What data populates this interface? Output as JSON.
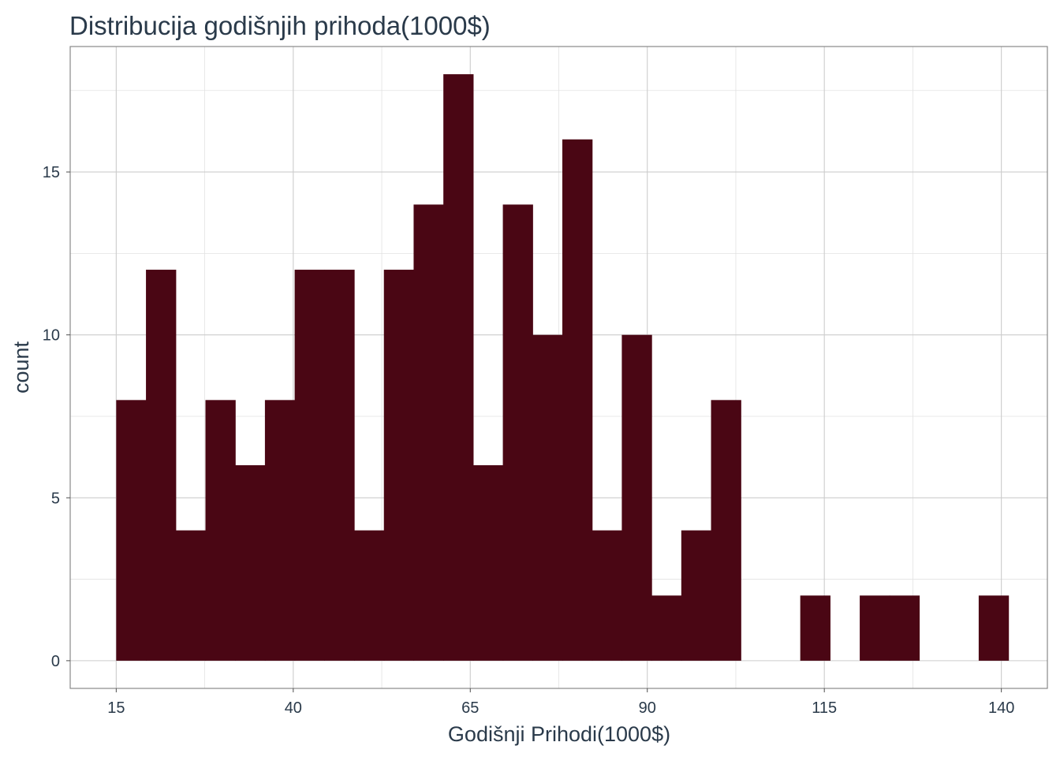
{
  "chart_data": {
    "type": "bar",
    "subtype": "histogram",
    "title": "Distribucija godišnjih prihoda(1000$)",
    "xlabel": "Godišnji Prihodi(1000$)",
    "ylabel": "count",
    "xlim": [
      8.5,
      146.5
    ],
    "ylim": [
      -0.85,
      18.85
    ],
    "x_ticks": [
      15,
      40,
      65,
      90,
      115,
      140
    ],
    "x_tick_labels": [
      "15",
      "40",
      "65",
      "90",
      "115",
      "140"
    ],
    "y_ticks": [
      0,
      5,
      10,
      15
    ],
    "y_tick_labels": [
      "0",
      "5",
      "10",
      "15"
    ],
    "y_minor_ticks": [
      2.5,
      7.5,
      12.5,
      17.5
    ],
    "grid": true,
    "bar_color": "#4a0614",
    "bins": [
      {
        "x0": 15.0,
        "x1": 19.2,
        "count": 8
      },
      {
        "x0": 19.2,
        "x1": 23.4,
        "count": 12
      },
      {
        "x0": 23.4,
        "x1": 27.6,
        "count": 4
      },
      {
        "x0": 27.6,
        "x1": 31.8,
        "count": 8
      },
      {
        "x0": 31.8,
        "x1": 36.0,
        "count": 6
      },
      {
        "x0": 36.0,
        "x1": 40.2,
        "count": 8
      },
      {
        "x0": 40.2,
        "x1": 44.4,
        "count": 12
      },
      {
        "x0": 44.4,
        "x1": 48.6,
        "count": 12
      },
      {
        "x0": 48.6,
        "x1": 52.8,
        "count": 4
      },
      {
        "x0": 52.8,
        "x1": 57.0,
        "count": 12
      },
      {
        "x0": 57.0,
        "x1": 61.2,
        "count": 14
      },
      {
        "x0": 61.2,
        "x1": 65.4,
        "count": 18
      },
      {
        "x0": 65.4,
        "x1": 69.6,
        "count": 6
      },
      {
        "x0": 69.6,
        "x1": 73.8,
        "count": 14
      },
      {
        "x0": 73.8,
        "x1": 78.0,
        "count": 10
      },
      {
        "x0": 78.0,
        "x1": 82.2,
        "count": 16
      },
      {
        "x0": 82.2,
        "x1": 86.4,
        "count": 4
      },
      {
        "x0": 86.4,
        "x1": 90.6,
        "count": 10
      },
      {
        "x0": 90.6,
        "x1": 94.8,
        "count": 2
      },
      {
        "x0": 94.8,
        "x1": 99.0,
        "count": 4
      },
      {
        "x0": 99.0,
        "x1": 103.2,
        "count": 8
      },
      {
        "x0": 103.2,
        "x1": 107.4,
        "count": 0
      },
      {
        "x0": 107.4,
        "x1": 111.6,
        "count": 0
      },
      {
        "x0": 111.6,
        "x1": 115.8,
        "count": 2
      },
      {
        "x0": 115.8,
        "x1": 120.0,
        "count": 0
      },
      {
        "x0": 120.0,
        "x1": 124.2,
        "count": 2
      },
      {
        "x0": 124.2,
        "x1": 128.4,
        "count": 2
      },
      {
        "x0": 128.4,
        "x1": 132.6,
        "count": 0
      },
      {
        "x0": 132.6,
        "x1": 136.8,
        "count": 0
      },
      {
        "x0": 136.8,
        "x1": 141.0,
        "count": 2
      }
    ]
  }
}
